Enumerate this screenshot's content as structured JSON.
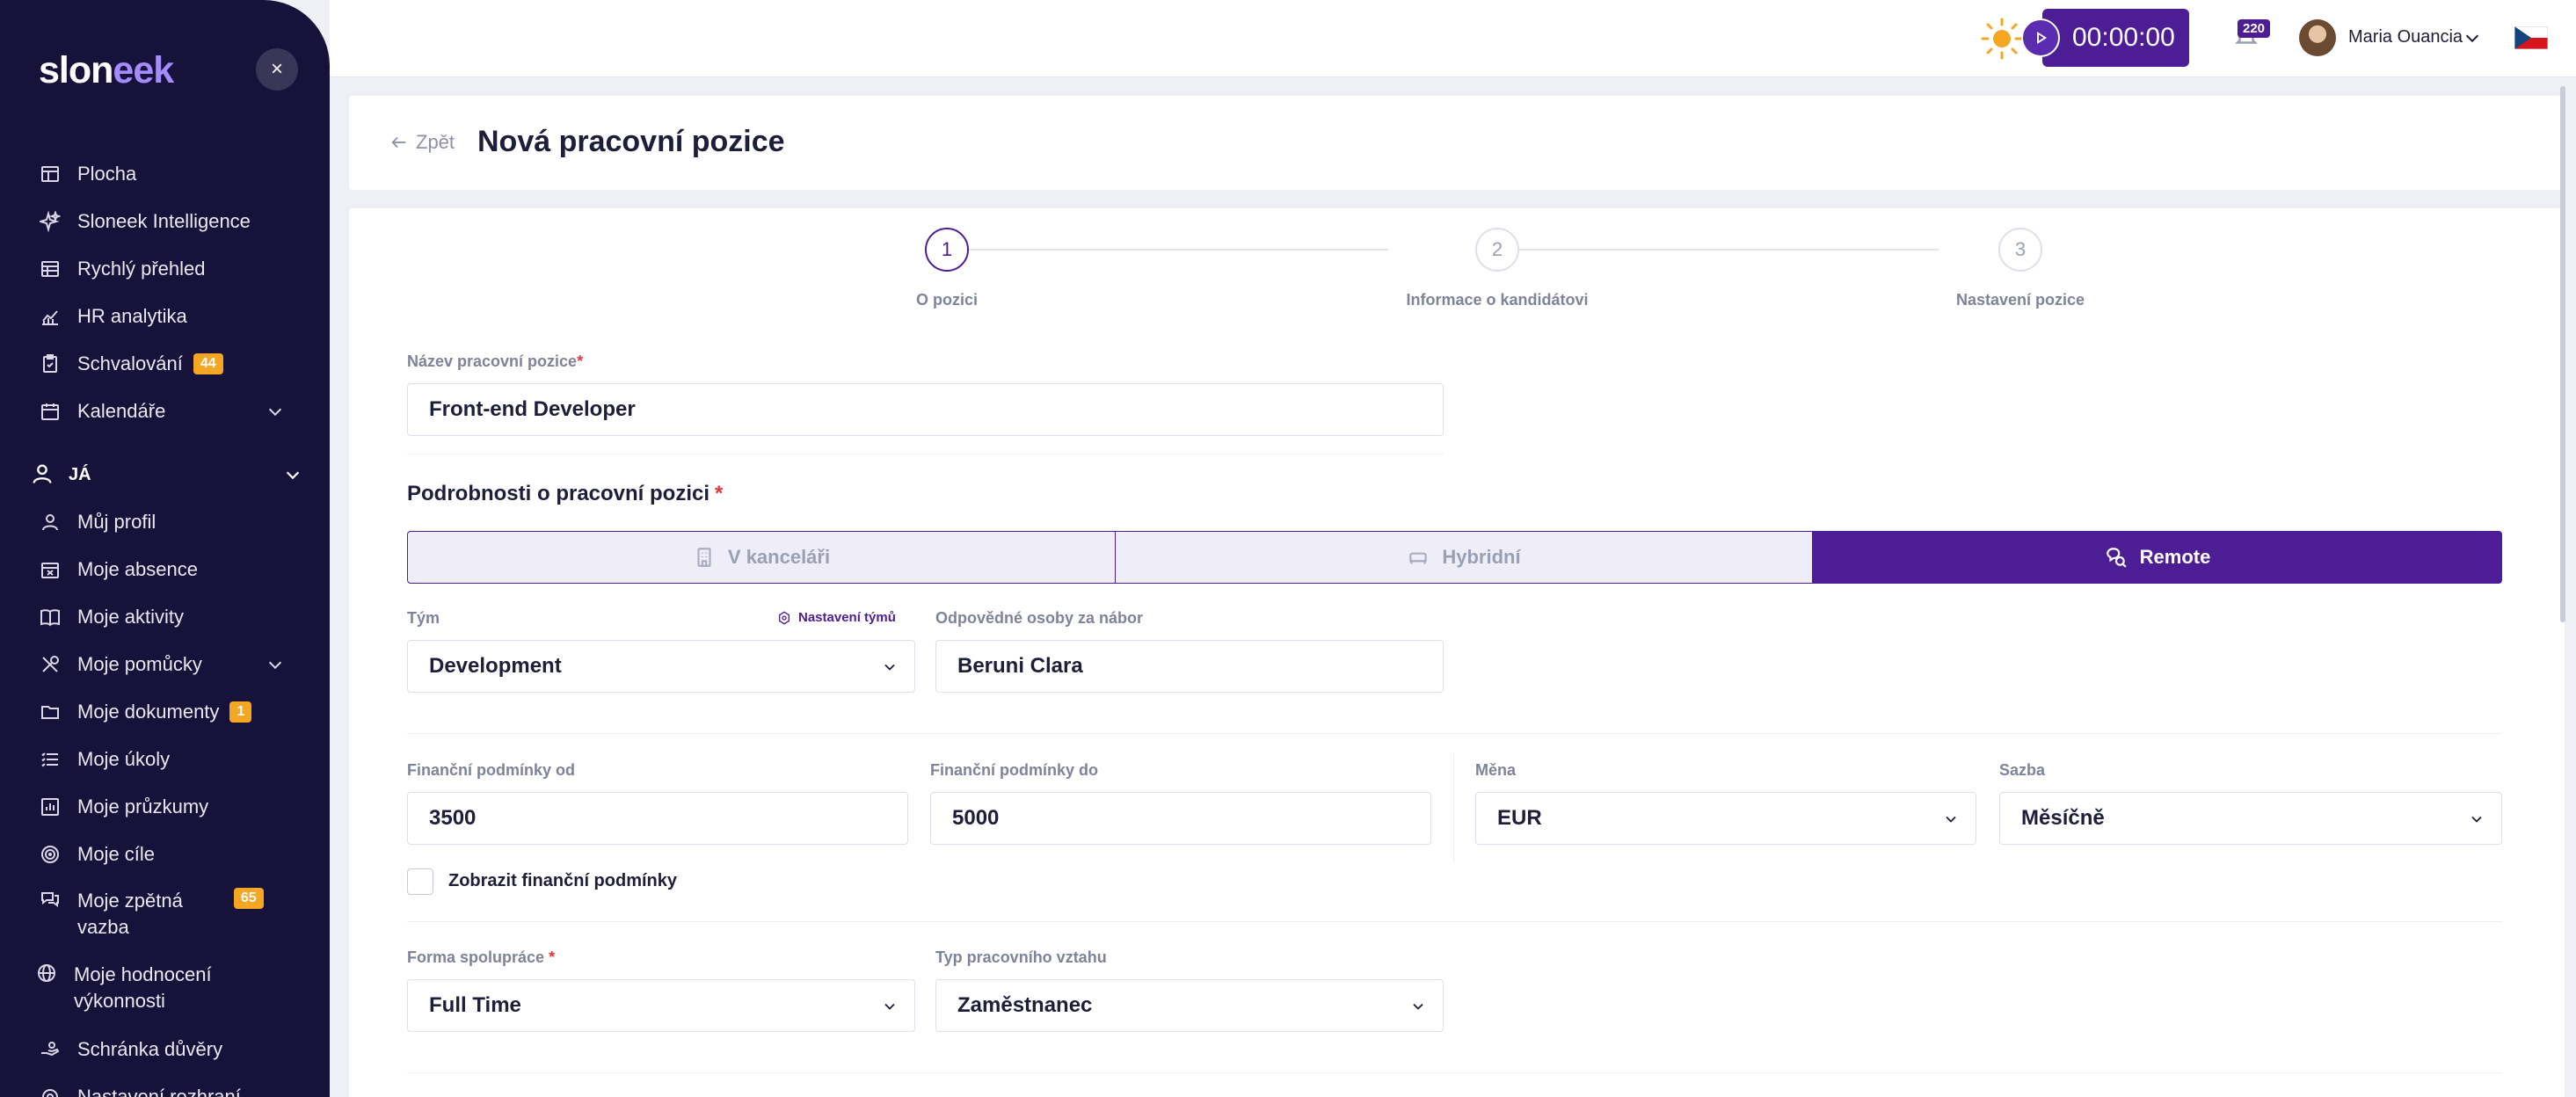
{
  "app": {
    "logo_text_a": "slon",
    "logo_text_b": "eek",
    "close_glyph": "×"
  },
  "sidebar": {
    "items": [
      {
        "label": "Plocha",
        "icon": "dashboard-icon"
      },
      {
        "label": "Sloneek Intelligence",
        "icon": "sparkles-icon"
      },
      {
        "label": "Rychlý přehled",
        "icon": "grid-icon"
      },
      {
        "label": "HR analytika",
        "icon": "chart-icon"
      },
      {
        "label": "Schvalování",
        "icon": "clipboard-icon",
        "badge": "44"
      },
      {
        "label": "Kalendáře",
        "icon": "calendar-icon"
      }
    ],
    "section_label": "JÁ",
    "me_items": [
      {
        "label": "Můj profil",
        "icon": "user-icon"
      },
      {
        "label": "Moje absence",
        "icon": "calendar-x-icon"
      },
      {
        "label": "Moje aktivity",
        "icon": "book-icon"
      },
      {
        "label": "Moje pomůcky",
        "icon": "tools-icon"
      },
      {
        "label": "Moje dokumenty",
        "icon": "folder-icon",
        "badge": "1"
      },
      {
        "label": "Moje úkoly",
        "icon": "list-icon"
      },
      {
        "label": "Moje průzkumy",
        "icon": "survey-icon"
      },
      {
        "label": "Moje cíle",
        "icon": "target-icon"
      },
      {
        "label_line1": "Moje zpětná",
        "label_line2": "vazba",
        "icon": "feedback-icon",
        "badge": "65"
      },
      {
        "label_line1": "Moje hodnocení",
        "label_line2": "výkonnosti",
        "icon": "globe-icon"
      },
      {
        "label": "Schránka důvěry",
        "icon": "hand-icon"
      },
      {
        "label": "Nastavení rozhraní",
        "icon": "settings-icon"
      }
    ]
  },
  "topbar": {
    "timer": "00:00:00",
    "notifications_count": "220",
    "user_name": "Maria Ouancia",
    "flag": "czech-flag",
    "accent": "#4c1d95"
  },
  "header": {
    "back_label": "Zpět",
    "title": "Nová pracovní pozice"
  },
  "stepper": [
    {
      "number": "1",
      "label": "O pozici"
    },
    {
      "number": "2",
      "label": "Informace o kandidátovi"
    },
    {
      "number": "3",
      "label": "Nastavení pozice"
    }
  ],
  "form": {
    "position_name_label": "Název pracovní pozice",
    "position_name_value": "Front-end Developer",
    "details_title": "Podrobnosti o pracovní pozici",
    "work_modes": [
      {
        "label": "V kanceláři",
        "icon": "building-icon",
        "selected": false
      },
      {
        "label": "Hybridní",
        "icon": "sofa-icon",
        "selected": false
      },
      {
        "label": "Remote",
        "icon": "remote-icon",
        "selected": true
      }
    ],
    "team_label": "Tým",
    "team_settings_link": "Nastavení týmů",
    "team_value": "Development",
    "recruiters_label": "Odpovědné osoby za nábor",
    "recruiters_value": "Beruni Clara",
    "salary_from_label": "Finanční podmínky od",
    "salary_from_value": "3500",
    "salary_to_label": "Finanční podmínky do",
    "salary_to_value": "5000",
    "currency_label": "Měna",
    "currency_value": "EUR",
    "rate_label": "Sazba",
    "rate_value": "Měsíčně",
    "show_salary_label": "Zobrazit finanční podmínky",
    "show_salary_checked": false,
    "cooperation_label": "Forma spolupráce",
    "cooperation_value": "Full Time",
    "employment_type_label": "Typ pracovního vztahu",
    "employment_type_value": "Zaměstnanec",
    "required_mark": "*"
  }
}
